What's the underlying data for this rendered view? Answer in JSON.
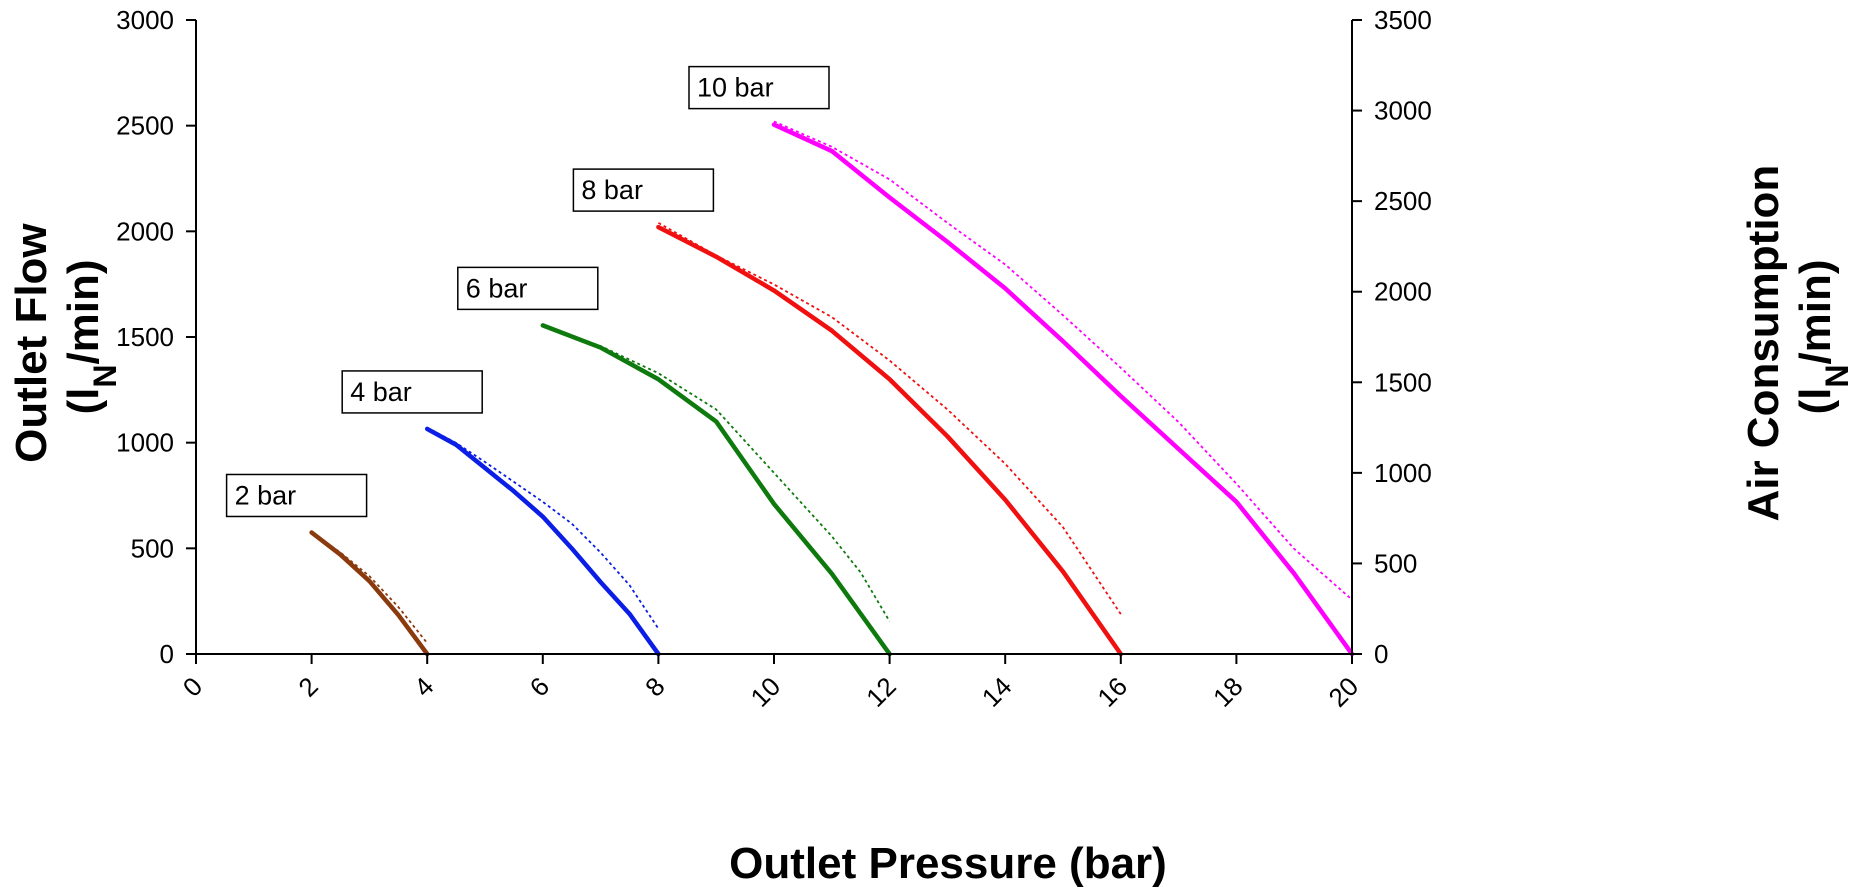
{
  "chart_data": {
    "type": "line",
    "title": "",
    "xlabel": "Outlet Pressure (bar)",
    "ylabel": {
      "line1": "Outlet Flow",
      "prefix": "(l",
      "sub": "N",
      "suffix": "/min)"
    },
    "y2label": {
      "line1": "Air Consumption",
      "prefix": "(l",
      "sub": "N",
      "suffix": "/min)"
    },
    "xlim": [
      0,
      20
    ],
    "ylim": [
      0,
      3000
    ],
    "y2lim": [
      0,
      3500
    ],
    "xticks": [
      "0",
      "2",
      "4",
      "6",
      "8",
      "10",
      "12",
      "14",
      "16",
      "18",
      "20"
    ],
    "xtick_values": [
      0,
      2,
      4,
      6,
      8,
      10,
      12,
      14,
      16,
      18,
      20
    ],
    "yticks": [
      "0",
      "500",
      "1000",
      "1500",
      "2000",
      "2500",
      "3000"
    ],
    "ytick_values": [
      0,
      500,
      1000,
      1500,
      2000,
      2500,
      3000
    ],
    "y2ticks": [
      "0",
      "500",
      "1000",
      "1500",
      "2000",
      "2500",
      "3000",
      "3500"
    ],
    "y2tick_values": [
      0,
      500,
      1000,
      1500,
      2000,
      2500,
      3000,
      3500
    ],
    "grid": false,
    "series": [
      {
        "color": "#8B3A0E",
        "outlet_flow": {
          "x": [
            2,
            2.5,
            3,
            3.5,
            4
          ],
          "y": [
            575,
            470,
            345,
            185,
            0
          ]
        },
        "air_consumption": {
          "x": [
            2,
            2.5,
            3,
            3.5,
            4
          ],
          "y": [
            670,
            560,
            430,
            260,
            60
          ]
        }
      },
      {
        "color": "#0A1EE6",
        "outlet_flow": {
          "x": [
            4,
            4.5,
            5,
            5.5,
            6,
            6.5,
            7,
            7.5,
            8
          ],
          "y": [
            1065,
            990,
            880,
            770,
            650,
            500,
            340,
            190,
            0
          ]
        },
        "air_consumption": {
          "x": [
            4,
            4.5,
            5,
            5.5,
            6,
            6.5,
            7,
            7.5,
            8
          ],
          "y": [
            1250,
            1165,
            1060,
            950,
            840,
            720,
            560,
            380,
            140
          ]
        }
      },
      {
        "color": "#0E7A0E",
        "outlet_flow": {
          "x": [
            6,
            7,
            8,
            9,
            10,
            11,
            12
          ],
          "y": [
            1555,
            1450,
            1300,
            1100,
            710,
            380,
            0
          ]
        },
        "air_consumption": {
          "x": [
            6,
            7,
            8,
            9,
            10,
            11,
            11.5,
            12
          ],
          "y": [
            1815,
            1700,
            1550,
            1350,
            1000,
            650,
            450,
            180
          ]
        }
      },
      {
        "color": "#F01010",
        "outlet_flow": {
          "x": [
            8,
            9,
            10,
            11,
            12,
            13,
            14,
            15,
            16
          ],
          "y": [
            2020,
            1880,
            1720,
            1530,
            1300,
            1030,
            730,
            390,
            0
          ]
        },
        "air_consumption": {
          "x": [
            8,
            9,
            10,
            11,
            12,
            13,
            14,
            15,
            16
          ],
          "y": [
            2380,
            2200,
            2040,
            1860,
            1620,
            1350,
            1050,
            700,
            220
          ]
        }
      },
      {
        "color": "#FF00FF",
        "outlet_flow": {
          "x": [
            10,
            11,
            12,
            13,
            14,
            15,
            16,
            17,
            18,
            19,
            20
          ],
          "y": [
            2505,
            2380,
            2160,
            1950,
            1730,
            1480,
            1220,
            970,
            720,
            380,
            0
          ]
        },
        "air_consumption": {
          "x": [
            10,
            11,
            12,
            13,
            14,
            15,
            16,
            17,
            18,
            19,
            20
          ],
          "y": [
            2940,
            2800,
            2620,
            2380,
            2150,
            1870,
            1580,
            1280,
            940,
            580,
            300
          ]
        }
      }
    ],
    "annotations": [
      {
        "text": "2 bar",
        "x": 2,
        "y": 575
      },
      {
        "text": "4 bar",
        "x": 4,
        "y": 1065
      },
      {
        "text": "6 bar",
        "x": 6,
        "y": 1555
      },
      {
        "text": "8 bar",
        "x": 8,
        "y": 2020
      },
      {
        "text": "10 bar",
        "x": 10,
        "y": 2505
      }
    ]
  }
}
